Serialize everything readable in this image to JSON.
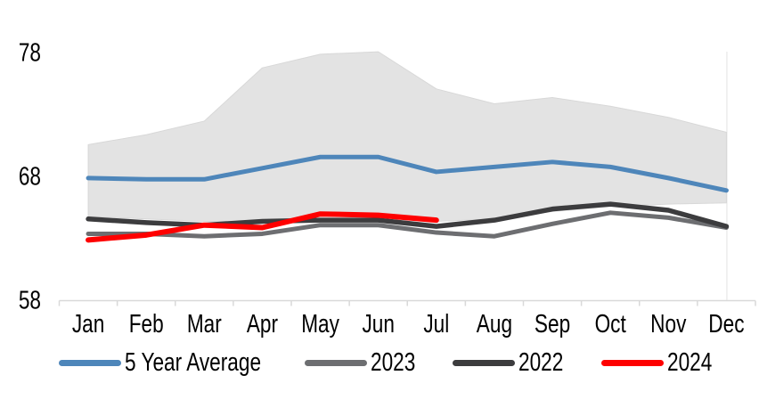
{
  "chart_data": {
    "type": "line",
    "title": "",
    "categories": [
      "Jan",
      "Feb",
      "Mar",
      "Apr",
      "May",
      "Jun",
      "Jul",
      "Aug",
      "Sep",
      "Oct",
      "Nov",
      "Dec"
    ],
    "y_ticks": [
      "78",
      "68",
      "58"
    ],
    "y_tick_values": [
      78,
      68,
      58
    ],
    "ylim": [
      58,
      78
    ],
    "grid": false,
    "legend_position": "bottom",
    "band": {
      "name": "5-year-range-band",
      "color": "#e3e3e3",
      "edge_color": "#d8d8d8",
      "upper": [
        70.6,
        71.4,
        72.5,
        76.8,
        77.9,
        78.1,
        75.1,
        73.9,
        74.4,
        73.7,
        72.8,
        71.6
      ],
      "lower": [
        64.8,
        64.6,
        64.4,
        64.4,
        64.9,
        64.9,
        64.4,
        64.6,
        65.2,
        65.6,
        65.8,
        65.9
      ]
    },
    "series": [
      {
        "name": "5 Year Average",
        "color": "#4e86ba",
        "values": [
          67.9,
          67.8,
          67.8,
          68.7,
          69.6,
          69.6,
          68.4,
          68.8,
          69.2,
          68.8,
          67.9,
          66.9
        ]
      },
      {
        "name": "2023",
        "color": "#6d6e71",
        "values": [
          63.4,
          63.4,
          63.2,
          63.4,
          64.1,
          64.1,
          63.5,
          63.2,
          64.2,
          65.1,
          64.7,
          63.9
        ]
      },
      {
        "name": "2022",
        "color": "#3c3c3e",
        "values": [
          64.6,
          64.3,
          64.1,
          64.4,
          64.5,
          64.5,
          64.0,
          64.5,
          65.4,
          65.8,
          65.3,
          64.0
        ]
      },
      {
        "name": "2024",
        "color": "#fe0000",
        "values": [
          62.9,
          63.3,
          64.1,
          63.9,
          65.0,
          64.9,
          64.5
        ]
      }
    ],
    "axis_color": "#d9d9d9",
    "plot_right_border_color": "#e2e2e2"
  }
}
